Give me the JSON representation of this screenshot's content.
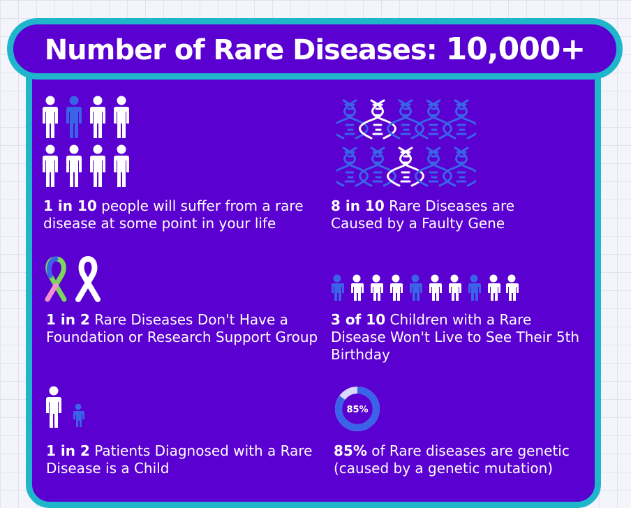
{
  "header": {
    "title_text": "Number of Rare Diseases:",
    "title_number": "10,000+"
  },
  "stats": [
    {
      "highlight": "1 in 10",
      "text": " people will suffer from a rare disease at some point in your life",
      "icon": "people-icon-grid"
    },
    {
      "highlight": "8 in 10",
      "text": " Rare Diseases are Caused by a Faulty Gene",
      "icon": "dna-icon-grid"
    },
    {
      "highlight": "1 in 2",
      "text": " Rare Diseases Don't Have a Foundation or Research Support Group",
      "icon": "ribbon-icons"
    },
    {
      "highlight": "3 of 10",
      "text": " Children with a Rare Disease Won't Live to See Their 5th Birthday",
      "icon": "children-icon-row"
    },
    {
      "highlight": "1 in 2",
      "text": " Patients Diagnosed with a Rare Disease is a Child",
      "icon": "adult-child-icon"
    },
    {
      "highlight": "85%",
      "text": " of Rare diseases are genetic (caused by a genetic mutation)",
      "icon": "donut-chart-icon"
    }
  ],
  "donut": {
    "label": "85%",
    "fraction": 0.85
  },
  "colors": {
    "panel": "#5a00d1",
    "border": "#1fb6cc",
    "icon_white": "#ffffff",
    "icon_blue": "#3a63e8"
  }
}
